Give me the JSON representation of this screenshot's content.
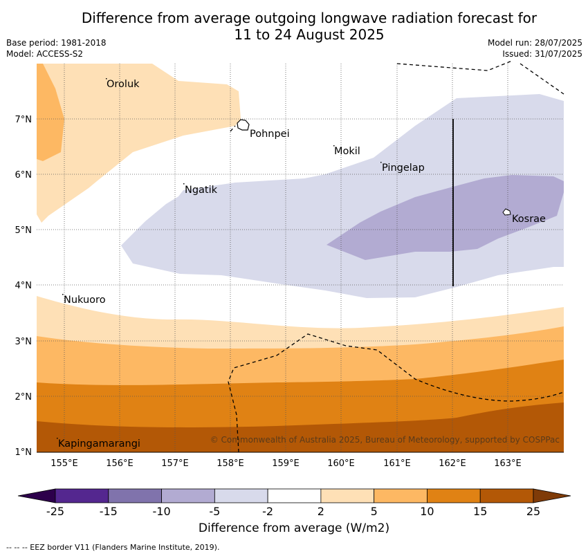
{
  "title_line1": "Difference from average outgoing longwave radiation forecast for",
  "title_line2": "11 to 24 August 2025",
  "meta": {
    "base_period": "Base period: 1981-2018",
    "model": "Model: ACCESS-S2",
    "model_run": "Model run: 28/07/2025",
    "issued": "Issued: 31/07/2025"
  },
  "map": {
    "lon_ticks": [
      "155°E",
      "156°E",
      "157°E",
      "158°E",
      "159°E",
      "160°E",
      "161°E",
      "162°E",
      "163°E"
    ],
    "lat_ticks": [
      "7°N",
      "6°N",
      "5°N",
      "4°N",
      "3°N",
      "2°N",
      "1°N"
    ],
    "places": [
      {
        "name": "Oroluk",
        "lon": 155.75,
        "lat": 7.6
      },
      {
        "name": "Pohnpei",
        "lon": 158.3,
        "lat": 6.85
      },
      {
        "name": "Mokil",
        "lon": 159.85,
        "lat": 6.4
      },
      {
        "name": "Pingelap",
        "lon": 160.75,
        "lat": 6.15
      },
      {
        "name": "Ngatik",
        "lon": 157.15,
        "lat": 5.75
      },
      {
        "name": "Kosrae",
        "lon": 163.0,
        "lat": 5.3
      },
      {
        "name": "Nukuoro",
        "lon": 154.95,
        "lat": 3.85
      },
      {
        "name": "Kapingamarangi",
        "lon": 154.85,
        "lat": 1.1
      }
    ],
    "copyright": "© Commonwealth of Australia 2025, Bureau of Meteorology, supported by COSPPac"
  },
  "colorbar": {
    "ticks": [
      "-25",
      "-15",
      "-10",
      "-5",
      "-2",
      "2",
      "5",
      "10",
      "15",
      "25"
    ],
    "colors": [
      "#54278f",
      "#8073ac",
      "#b2abd2",
      "#d8daeb",
      "#ffffff",
      "#fee0b6",
      "#fdb863",
      "#e08214",
      "#b35806"
    ],
    "extend_low": "#2d004b",
    "extend_high": "#7f3b08",
    "label": "Difference from average (W/m2)"
  },
  "footnote": "-- -- -- EEZ border V11 (Flanders Marine Institute, 2019)."
}
